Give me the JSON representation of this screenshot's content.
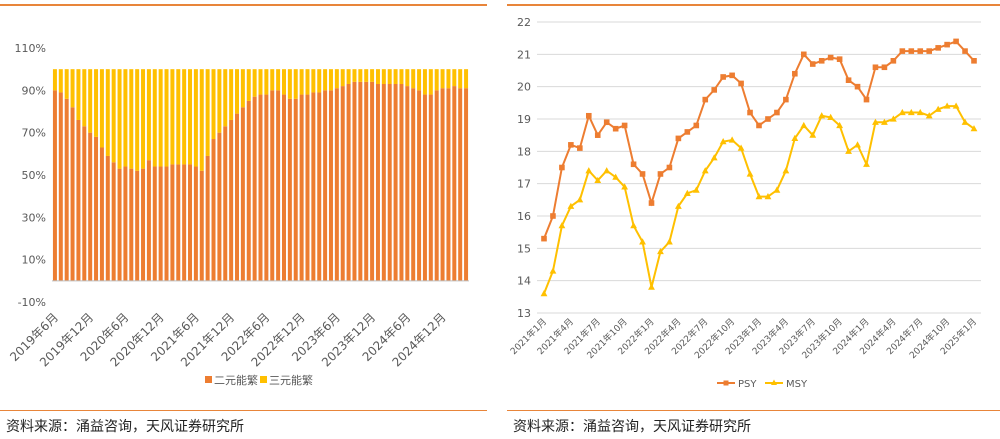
{
  "colors": {
    "orange": "#ED7D31",
    "yellow": "#FFC000",
    "rule": "#E8853A",
    "grid": "#D9D9D9",
    "axis_text": "#595959"
  },
  "left": {
    "source": "资料来源：涌益咨询，天风证券研究所",
    "chart_data": {
      "type": "bar",
      "stacked": true,
      "percent": true,
      "ylim": [
        -10,
        110
      ],
      "yticks": [
        "-10%",
        "10%",
        "30%",
        "50%",
        "70%",
        "90%",
        "110%"
      ],
      "ytick_values": [
        -10,
        10,
        30,
        50,
        70,
        90,
        110
      ],
      "grid": false,
      "legend_position": "bottom",
      "xtick_labels": [
        "2019年6月",
        "2019年12月",
        "2020年6月",
        "2020年12月",
        "2021年6月",
        "2021年12月",
        "2022年6月",
        "2022年12月",
        "2023年6月",
        "2023年12月",
        "2024年6月",
        "2024年12月"
      ],
      "xtick_indices": [
        0,
        6,
        12,
        18,
        24,
        30,
        36,
        42,
        48,
        54,
        60,
        66
      ],
      "series": [
        {
          "name": "二元能繁",
          "color": "#ED7D31",
          "values": [
            90,
            89,
            86,
            82,
            76,
            73,
            70,
            68,
            63,
            59,
            56,
            53,
            54,
            53,
            52,
            53,
            57,
            54,
            54,
            54,
            55,
            55,
            55,
            55,
            54,
            52,
            59,
            67,
            70,
            73,
            76,
            79,
            82,
            85,
            87,
            88,
            88,
            90,
            90,
            88,
            86,
            86,
            88,
            88,
            89,
            89,
            90,
            90,
            91,
            92,
            93,
            94,
            94,
            94,
            94,
            93,
            93,
            93,
            93,
            93,
            92,
            91,
            90,
            88,
            88,
            90,
            91,
            91,
            92,
            91,
            91
          ]
        },
        {
          "name": "三元能繁",
          "color": "#FFC000",
          "values": [
            10,
            11,
            14,
            18,
            24,
            27,
            30,
            32,
            37,
            41,
            44,
            47,
            46,
            47,
            48,
            47,
            43,
            46,
            46,
            46,
            45,
            45,
            45,
            45,
            46,
            48,
            41,
            33,
            30,
            27,
            24,
            21,
            18,
            15,
            13,
            12,
            12,
            10,
            10,
            12,
            14,
            14,
            12,
            12,
            11,
            11,
            10,
            10,
            9,
            8,
            7,
            6,
            6,
            6,
            6,
            7,
            7,
            7,
            7,
            7,
            8,
            9,
            10,
            12,
            12,
            10,
            9,
            9,
            8,
            9,
            9
          ]
        }
      ]
    }
  },
  "right": {
    "source": "资料来源：涌益咨询，天风证券研究所",
    "chart_data": {
      "type": "line",
      "ylim": [
        13,
        22
      ],
      "yticks": [
        "13",
        "14",
        "15",
        "16",
        "17",
        "18",
        "19",
        "20",
        "21",
        "22"
      ],
      "ytick_values": [
        13,
        14,
        15,
        16,
        17,
        18,
        19,
        20,
        21,
        22
      ],
      "grid": true,
      "legend_position": "bottom",
      "x": [
        "2021年1月",
        "2021年2月",
        "2021年3月",
        "2021年4月",
        "2021年5月",
        "2021年6月",
        "2021年7月",
        "2021年8月",
        "2021年9月",
        "2021年10月",
        "2021年11月",
        "2021年12月",
        "2022年1月",
        "2022年2月",
        "2022年3月",
        "2022年4月",
        "2022年5月",
        "2022年6月",
        "2022年7月",
        "2022年8月",
        "2022年9月",
        "2022年10月",
        "2022年11月",
        "2022年12月",
        "2023年1月",
        "2023年2月",
        "2023年3月",
        "2023年4月",
        "2023年5月",
        "2023年6月",
        "2023年7月",
        "2023年8月",
        "2023年9月",
        "2023年10月",
        "2023年11月",
        "2023年12月",
        "2024年1月",
        "2024年2月",
        "2024年3月",
        "2024年4月",
        "2024年5月",
        "2024年6月",
        "2024年7月",
        "2024年8月",
        "2024年9月",
        "2024年10月",
        "2024年11月",
        "2024年12月",
        "2025年1月"
      ],
      "xtick_labels": [
        "2021年1月",
        "2021年4月",
        "2021年7月",
        "2021年10月",
        "2022年1月",
        "2022年4月",
        "2022年7月",
        "2022年10月",
        "2023年1月",
        "2023年4月",
        "2023年7月",
        "2023年10月",
        "2024年1月",
        "2024年4月",
        "2024年7月",
        "2024年10月",
        "2025年1月"
      ],
      "xtick_indices": [
        0,
        3,
        6,
        9,
        12,
        15,
        18,
        21,
        24,
        27,
        30,
        33,
        36,
        39,
        42,
        45,
        48
      ],
      "series": [
        {
          "name": "PSY",
          "color": "#ED7D31",
          "marker": "square",
          "values": [
            15.3,
            16.0,
            17.5,
            18.2,
            18.1,
            19.1,
            18.5,
            18.9,
            18.7,
            18.8,
            17.6,
            17.3,
            16.4,
            17.3,
            17.5,
            18.4,
            18.6,
            18.8,
            19.6,
            19.9,
            20.3,
            20.35,
            20.1,
            19.2,
            18.8,
            19.0,
            19.2,
            19.6,
            20.4,
            21.0,
            20.7,
            20.8,
            20.9,
            20.85,
            20.2,
            20.0,
            19.6,
            20.6,
            20.6,
            20.8,
            21.1,
            21.1,
            21.1,
            21.1,
            21.2,
            21.3,
            21.4,
            21.1,
            20.8
          ]
        },
        {
          "name": "MSY",
          "color": "#FFC000",
          "marker": "triangle",
          "values": [
            13.6,
            14.3,
            15.7,
            16.3,
            16.5,
            17.4,
            17.1,
            17.4,
            17.2,
            16.9,
            15.7,
            15.2,
            13.8,
            14.9,
            15.2,
            16.3,
            16.7,
            16.8,
            17.4,
            17.8,
            18.3,
            18.35,
            18.1,
            17.3,
            16.6,
            16.6,
            16.8,
            17.4,
            18.4,
            18.8,
            18.5,
            19.1,
            19.05,
            18.8,
            18.0,
            18.2,
            17.6,
            18.9,
            18.9,
            19.0,
            19.2,
            19.2,
            19.2,
            19.1,
            19.3,
            19.4,
            19.4,
            18.9,
            18.7
          ]
        }
      ]
    }
  }
}
